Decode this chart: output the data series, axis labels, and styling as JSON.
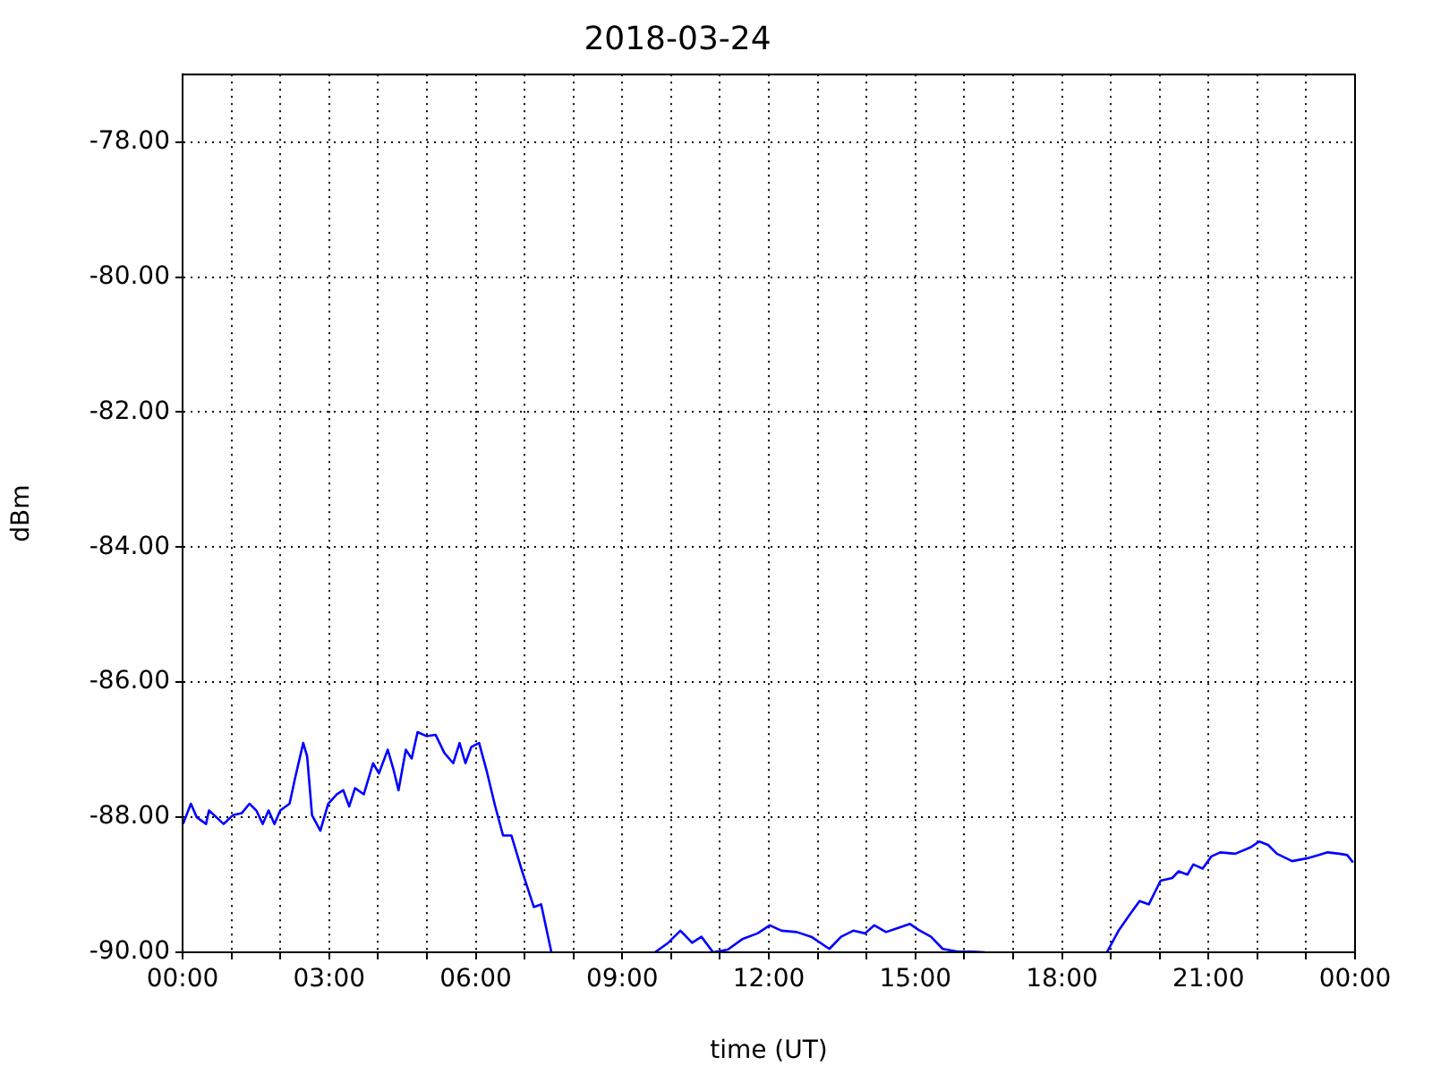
{
  "chart_data": {
    "type": "line",
    "title": "2018-03-24",
    "xlabel": "time (UT)",
    "ylabel": "dBm",
    "x": [
      0.01,
      0.17,
      0.29,
      0.48,
      0.54,
      0.84,
      1.03,
      1.21,
      1.37,
      1.51,
      1.64,
      1.76,
      1.88,
      2.0,
      2.19,
      2.31,
      2.47,
      2.55,
      2.65,
      2.82,
      2.98,
      3.16,
      3.29,
      3.41,
      3.53,
      3.71,
      3.9,
      4.02,
      4.2,
      4.32,
      4.42,
      4.57,
      4.69,
      4.81,
      5.0,
      5.18,
      5.36,
      5.54,
      5.67,
      5.79,
      5.91,
      6.07,
      6.22,
      6.4,
      6.56,
      6.73,
      6.95,
      7.19,
      7.34,
      7.55,
      8.6,
      9.67,
      9.94,
      10.19,
      10.43,
      10.62,
      10.86,
      11.16,
      11.47,
      11.77,
      12.02,
      12.26,
      12.57,
      12.87,
      13.24,
      13.48,
      13.73,
      13.97,
      14.16,
      14.4,
      14.65,
      14.89,
      15.07,
      15.32,
      15.56,
      15.87,
      16.17,
      16.42,
      17.7,
      18.92,
      19.16,
      19.41,
      19.59,
      19.78,
      20.02,
      20.26,
      20.39,
      20.57,
      20.69,
      20.88,
      21.06,
      21.24,
      21.55,
      21.85,
      22.04,
      22.22,
      22.4,
      22.71,
      23.01,
      23.26,
      23.44,
      23.68,
      23.84,
      23.96
    ],
    "series": [
      {
        "color": "#0000ff",
        "values": [
          -88.1,
          -87.8,
          -88.0,
          -88.1,
          -87.9,
          -88.1,
          -87.97,
          -87.94,
          -87.8,
          -87.9,
          -88.1,
          -87.9,
          -88.1,
          -87.9,
          -87.8,
          -87.4,
          -86.9,
          -87.1,
          -87.97,
          -88.2,
          -87.8,
          -87.66,
          -87.6,
          -87.84,
          -87.57,
          -87.66,
          -87.2,
          -87.35,
          -87.0,
          -87.3,
          -87.6,
          -87.0,
          -87.13,
          -86.74,
          -86.8,
          -86.78,
          -87.05,
          -87.2,
          -86.9,
          -87.2,
          -86.96,
          -86.9,
          -87.3,
          -87.84,
          -88.27,
          -88.27,
          -88.8,
          -89.33,
          -89.29,
          -90.0,
          null,
          -90.0,
          -89.86,
          -89.68,
          -89.86,
          -89.77,
          -90.0,
          -89.96,
          -89.8,
          -89.72,
          -89.6,
          -89.68,
          -89.7,
          -89.77,
          -89.95,
          -89.77,
          -89.68,
          -89.72,
          -89.6,
          -89.7,
          -89.64,
          -89.58,
          -89.67,
          -89.77,
          -89.95,
          -89.99,
          -89.99,
          -90.0,
          null,
          -90.0,
          -89.68,
          -89.42,
          -89.24,
          -89.29,
          -88.94,
          -88.9,
          -88.8,
          -88.85,
          -88.7,
          -88.76,
          -88.58,
          -88.52,
          -88.54,
          -88.45,
          -88.36,
          -88.41,
          -88.54,
          -88.65,
          -88.61,
          -88.56,
          -88.52,
          -88.54,
          -88.56,
          -88.67
        ]
      }
    ],
    "xlim": [
      0,
      24
    ],
    "xticks": [
      {
        "value": 0,
        "label": "00:00"
      },
      {
        "value": 1,
        "label": null
      },
      {
        "value": 2,
        "label": null
      },
      {
        "value": 3,
        "label": "03:00"
      },
      {
        "value": 4,
        "label": null
      },
      {
        "value": 5,
        "label": null
      },
      {
        "value": 6,
        "label": "06:00"
      },
      {
        "value": 7,
        "label": null
      },
      {
        "value": 8,
        "label": null
      },
      {
        "value": 9,
        "label": "09:00"
      },
      {
        "value": 10,
        "label": null
      },
      {
        "value": 11,
        "label": null
      },
      {
        "value": 12,
        "label": "12:00"
      },
      {
        "value": 13,
        "label": null
      },
      {
        "value": 14,
        "label": null
      },
      {
        "value": 15,
        "label": "15:00"
      },
      {
        "value": 16,
        "label": null
      },
      {
        "value": 17,
        "label": null
      },
      {
        "value": 18,
        "label": "18:00"
      },
      {
        "value": 19,
        "label": null
      },
      {
        "value": 20,
        "label": null
      },
      {
        "value": 21,
        "label": "21:00"
      },
      {
        "value": 22,
        "label": null
      },
      {
        "value": 23,
        "label": null
      },
      {
        "value": 24,
        "label": "00:00"
      }
    ],
    "ylim": [
      -90,
      -77
    ],
    "yticks": [
      {
        "value": -90,
        "label": "-90.00"
      },
      {
        "value": -88,
        "label": "-88.00"
      },
      {
        "value": -86,
        "label": "-86.00"
      },
      {
        "value": -84,
        "label": "-84.00"
      },
      {
        "value": -82,
        "label": "-82.00"
      },
      {
        "value": -80,
        "label": "-80.00"
      },
      {
        "value": -78,
        "label": "-78.00"
      }
    ],
    "grid": true
  }
}
